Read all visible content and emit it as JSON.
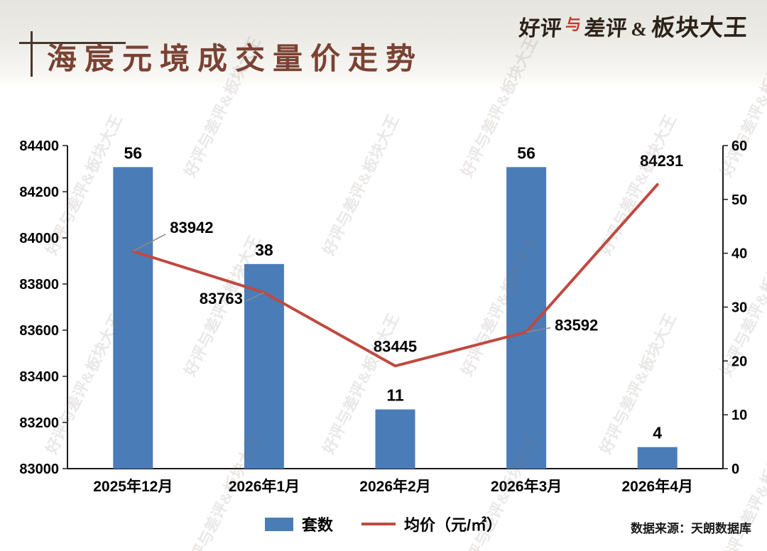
{
  "header": {
    "title": "海宸元境成交量价走势",
    "logo_parts": [
      "好评",
      "与",
      "差评",
      "&",
      "板块大王"
    ],
    "title_color": "#7a4233"
  },
  "watermark": "好评与差评&板块大王",
  "legend": {
    "bar": "套数",
    "line": "均价（元/㎡）"
  },
  "footer": {
    "source": "数据来源：天朗数据库"
  },
  "colors": {
    "bar": "#4a7cb8",
    "line": "#c0493f",
    "axis": "#1a1a1a",
    "label": "#000000"
  },
  "chart_data": {
    "type": "bar+line",
    "title": "海宸元境成交量价走势",
    "categories": [
      "2025年12月",
      "2026年1月",
      "2026年2月",
      "2026年3月",
      "2026年4月"
    ],
    "series": [
      {
        "name": "套数",
        "type": "bar",
        "axis": "right",
        "values": [
          56,
          38,
          11,
          56,
          4
        ],
        "color": "#4a7cb8"
      },
      {
        "name": "均价（元/㎡）",
        "type": "line",
        "axis": "left",
        "values": [
          83942,
          83763,
          83445,
          83592,
          84231
        ],
        "color": "#c0493f"
      }
    ],
    "left_axis": {
      "min": 83000,
      "max": 84400,
      "step": 200
    },
    "right_axis": {
      "min": 0,
      "max": 60,
      "step": 10
    },
    "grid": false,
    "legend_position": "bottom"
  }
}
